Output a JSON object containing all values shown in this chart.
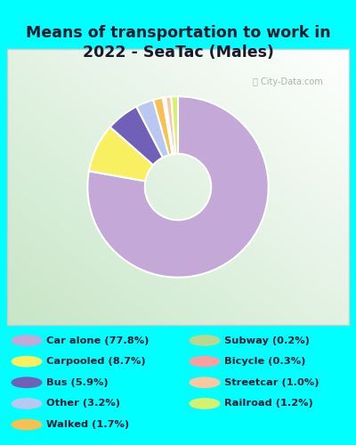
{
  "title": "Means of transportation to work in\n2022 - SeaTac (Males)",
  "title_color": "#1a1a2e",
  "bg_color": "#00FFFF",
  "chart_bg_left": "#c8e6c9",
  "chart_bg_right": "#f0f4f0",
  "slices": [
    {
      "label": "Car alone (77.8%)",
      "value": 77.8,
      "color": "#c4a8d8"
    },
    {
      "label": "Carpooled (8.7%)",
      "value": 8.7,
      "color": "#f8f060"
    },
    {
      "label": "Bus (5.9%)",
      "value": 5.9,
      "color": "#7060b8"
    },
    {
      "label": "Other (3.2%)",
      "value": 3.2,
      "color": "#b8c8f0"
    },
    {
      "label": "Walked (1.7%)",
      "value": 1.7,
      "color": "#f8c050"
    },
    {
      "label": "Subway (0.2%)",
      "value": 0.2,
      "color": "#b8d890"
    },
    {
      "label": "Bicycle (0.3%)",
      "value": 0.3,
      "color": "#f8a0a0"
    },
    {
      "label": "Streetcar (1.0%)",
      "value": 1.0,
      "color": "#f8c8a0"
    },
    {
      "label": "Railroad (1.2%)",
      "value": 1.2,
      "color": "#d8f070"
    }
  ],
  "watermark": "City-Data.com"
}
